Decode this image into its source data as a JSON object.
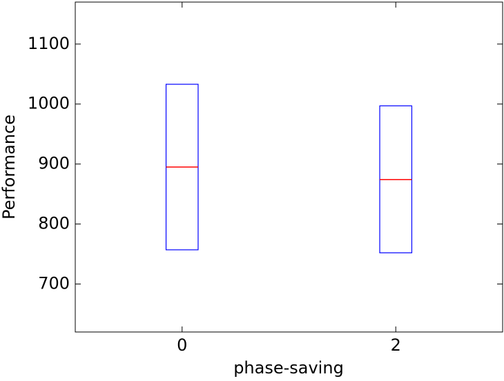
{
  "chart_data": {
    "type": "box",
    "xlabel": "phase-saving",
    "ylabel": "Performance",
    "x": [
      0,
      2
    ],
    "q1": [
      757,
      752
    ],
    "median": [
      895,
      874
    ],
    "q3": [
      1033,
      997
    ],
    "box_color": "#0000ff",
    "median_color": "#ff0000",
    "xlim": [
      -1,
      3
    ],
    "ylim": [
      620,
      1170
    ],
    "xticks": [
      0,
      2
    ],
    "yticks": [
      700,
      800,
      900,
      1000,
      1100
    ]
  }
}
